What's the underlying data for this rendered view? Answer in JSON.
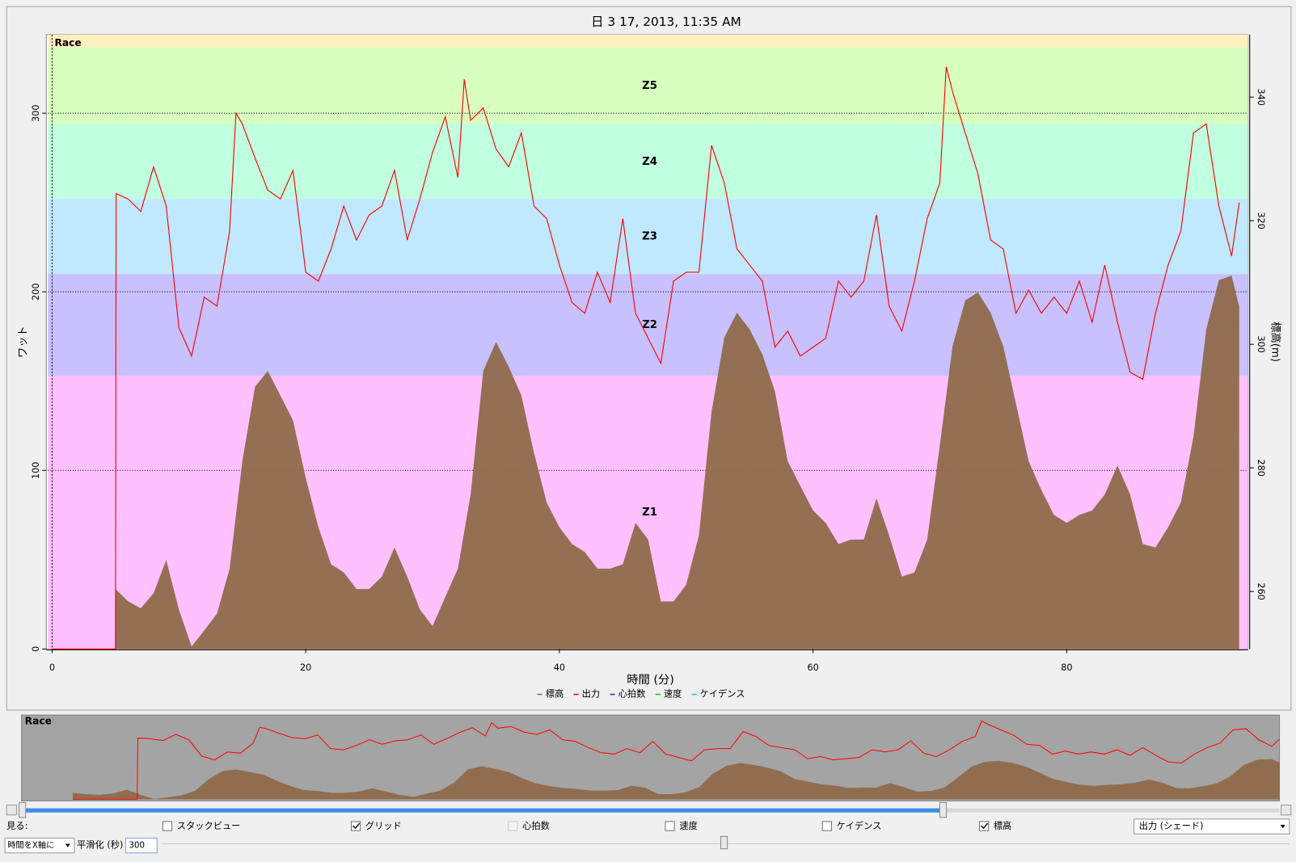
{
  "chart_data": {
    "type": "line",
    "title": "日 3 17, 2013, 11:35 AM",
    "xlabel": "時間 (分)",
    "ylabel": "ワット",
    "y2label": "標高(m)",
    "xlim": [
      0,
      94.3
    ],
    "xticks": [
      0,
      20,
      40,
      60,
      80
    ],
    "ylim": [
      0,
      344
    ],
    "yticks": [
      0,
      100,
      200,
      300
    ],
    "y2lim": [
      250.7,
      350.1
    ],
    "y2ticks": [
      260,
      280,
      300,
      320,
      340
    ],
    "grid": true,
    "zones": [
      {
        "name": "Z1",
        "from": 0,
        "to": 153,
        "color": "#ffc0ff",
        "label_color": "#ff80ff"
      },
      {
        "name": "Z2",
        "from": 153,
        "to": 210,
        "color": "#c8c0ff",
        "label_color": "#9a90ff"
      },
      {
        "name": "Z3",
        "from": 210,
        "to": 252,
        "color": "#c0e8ff",
        "label_color": "#80c8ff"
      },
      {
        "name": "Z4",
        "from": 252,
        "to": 294,
        "color": "#c0ffe0",
        "label_color": "#80ffc0"
      },
      {
        "name": "Z5",
        "from": 294,
        "to": 337,
        "color": "#d8ffc0",
        "label_color": "#b0ff80"
      },
      {
        "name": "Race",
        "from": 337,
        "to": 344,
        "color": "#fff0c0",
        "label_color": "#000000"
      }
    ],
    "series": [
      {
        "name": "標高",
        "color": "#8f6a4b",
        "axis": "y2",
        "fill": true,
        "x": [
          5,
          6,
          7,
          8,
          9,
          10,
          11,
          12,
          13,
          14,
          15,
          16,
          17,
          18,
          19,
          20,
          21,
          22,
          23,
          24,
          25,
          26,
          27,
          28,
          29,
          30,
          31,
          32,
          33,
          34,
          35,
          36,
          37,
          38,
          39,
          40,
          41,
          42,
          43,
          44,
          45,
          46,
          47,
          48,
          49,
          50,
          51,
          52,
          53,
          54,
          55,
          56,
          57,
          58,
          59,
          60,
          61,
          62,
          63,
          64,
          65,
          66,
          67,
          68,
          69,
          70,
          71,
          72,
          73,
          74,
          75,
          76,
          77,
          78,
          79,
          80,
          81,
          82,
          83,
          84,
          85,
          86,
          87,
          88,
          89,
          90,
          91,
          92,
          93,
          93.6
        ],
        "values": [
          260.4,
          258.4,
          257.3,
          259.7,
          265.1,
          257.1,
          251.1,
          253.7,
          256.4,
          263.7,
          281.1,
          293.1,
          295.7,
          291.7,
          287.7,
          278.4,
          270.4,
          264.4,
          263.1,
          260.4,
          260.4,
          262.4,
          267.1,
          262.4,
          257.1,
          254.4,
          259.1,
          263.7,
          275.7,
          295.7,
          300.4,
          296.4,
          291.7,
          282.4,
          274.4,
          270.4,
          267.7,
          266.4,
          263.7,
          263.7,
          264.4,
          271.1,
          268.4,
          258.4,
          258.4,
          261.1,
          269.1,
          289.1,
          301.1,
          305.1,
          302.4,
          298.4,
          292.4,
          281.1,
          277.1,
          273.1,
          271.1,
          267.7,
          268.4,
          268.4,
          275.1,
          269.1,
          262.4,
          263.1,
          268.4,
          283.7,
          299.7,
          307.1,
          308.4,
          305.1,
          299.7,
          290.4,
          281.1,
          276.4,
          272.4,
          271.1,
          272.4,
          273.1,
          275.7,
          280.4,
          275.7,
          267.7,
          267.1,
          270.4,
          274.4,
          285.1,
          302.4,
          310.4,
          311.1,
          306.1
        ]
      },
      {
        "name": "出力",
        "color": "#ff0000",
        "x": [
          0,
          5,
          5.05,
          6,
          7,
          8,
          9,
          10,
          11,
          12,
          13,
          14,
          14.5,
          15,
          16,
          17,
          18,
          19,
          20,
          21,
          22,
          23,
          24,
          25,
          26,
          27,
          28,
          29,
          30,
          31,
          32,
          32.5,
          33,
          34,
          35,
          36,
          37,
          38,
          39,
          40,
          41,
          42,
          43,
          44,
          45,
          46,
          47,
          48,
          49,
          50,
          51,
          52,
          53,
          54,
          55,
          56,
          57,
          58,
          59,
          60,
          61,
          62,
          63,
          64,
          65,
          66,
          67,
          68,
          69,
          70,
          70.5,
          71,
          72,
          73,
          74,
          75,
          76,
          77,
          78,
          79,
          80,
          81,
          82,
          83,
          84,
          85,
          86,
          87,
          88,
          89,
          90,
          91,
          92,
          93,
          93.6
        ],
        "values": [
          0,
          0,
          255,
          252,
          245,
          270,
          248,
          180,
          164,
          197,
          192,
          234,
          300,
          294,
          275,
          257,
          252,
          268,
          211,
          206,
          224,
          248,
          229,
          243,
          248,
          268,
          229,
          252,
          278,
          298,
          264,
          319,
          296,
          303,
          280,
          270,
          289,
          248,
          241,
          215,
          194,
          188,
          211,
          194,
          241,
          188,
          174,
          160,
          206,
          211,
          211,
          282,
          261,
          224,
          215,
          206,
          169,
          178,
          164,
          169,
          174,
          206,
          197,
          206,
          243,
          192,
          178,
          206,
          241,
          261,
          326,
          312,
          289,
          266,
          229,
          224,
          188,
          201,
          188,
          197,
          188,
          206,
          183,
          215,
          183,
          155,
          151,
          188,
          215,
          234,
          289,
          294,
          248,
          220,
          250
        ]
      },
      {
        "name": "心拍数",
        "color": "#3030c0"
      },
      {
        "name": "速度",
        "color": "#20c020"
      },
      {
        "name": "ケイデンス",
        "color": "#20c0d0"
      }
    ]
  },
  "overview": {
    "label": "Race"
  },
  "controls": {
    "view_label": "見る:",
    "checkboxes": [
      {
        "label": "スタックビュー",
        "checked": false,
        "disabled": false
      },
      {
        "label": "グリッド",
        "checked": true,
        "disabled": false
      },
      {
        "label": "心拍数",
        "checked": false,
        "disabled": true
      },
      {
        "label": "速度",
        "checked": false,
        "disabled": false
      },
      {
        "label": "ケイデンス",
        "checked": false,
        "disabled": false
      },
      {
        "label": "標高",
        "checked": true,
        "disabled": false
      }
    ],
    "shade_select": "出力 (シェード)",
    "x_axis_select": "時間をX軸に",
    "smoothing_label": "平滑化 (秒)",
    "smoothing_value": "300"
  }
}
